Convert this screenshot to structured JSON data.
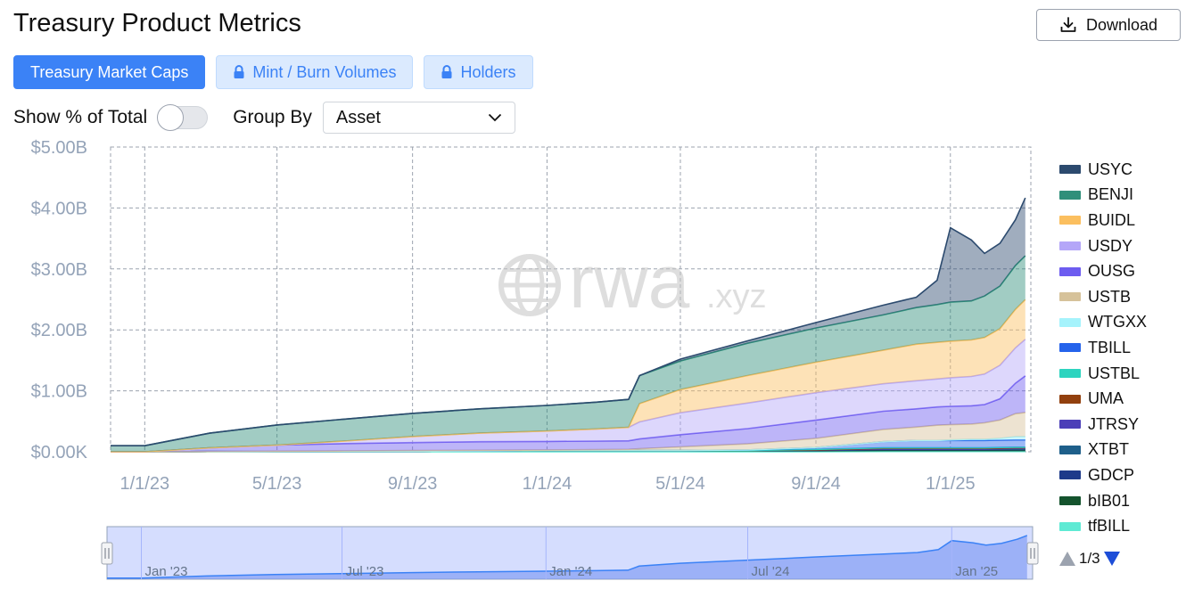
{
  "header": {
    "title": "Treasury Product Metrics",
    "download_label": "Download"
  },
  "tabs": [
    {
      "label": "Treasury Market Caps",
      "active": true
    },
    {
      "label": "Mint / Burn Volumes",
      "locked": true
    },
    {
      "label": "Holders",
      "locked": true
    }
  ],
  "controls": {
    "percent_label": "Show % of Total",
    "percent_on": false,
    "group_label": "Group By",
    "group_value": "Asset"
  },
  "watermark": {
    "main": "rwa",
    "suffix": ".xyz"
  },
  "pager": {
    "text": "1/3"
  },
  "colors": {
    "accent": "#3b82f6",
    "navigator": "#6d8cf0"
  },
  "chart_data": {
    "type": "area",
    "stacked": true,
    "xlim": [
      "2022-12-01",
      "2025-03-15"
    ],
    "ylim": [
      0,
      5
    ],
    "y_unit": "billions USD",
    "x_ticks": [
      "1/1/23",
      "5/1/23",
      "9/1/23",
      "1/1/24",
      "5/1/24",
      "9/1/24",
      "1/1/25"
    ],
    "x_tick_dates": [
      "2023-01-01",
      "2023-05-01",
      "2023-09-01",
      "2024-01-01",
      "2024-05-01",
      "2024-09-01",
      "2025-01-01"
    ],
    "y_ticks": [
      "$0.00K",
      "$1.00B",
      "$2.00B",
      "$3.00B",
      "$4.00B",
      "$5.00B"
    ],
    "y_tick_values": [
      0,
      1,
      2,
      3,
      4,
      5
    ],
    "grid": true,
    "legend_position": "right",
    "x": [
      "2022-12-01",
      "2023-01-01",
      "2023-03-01",
      "2023-05-01",
      "2023-07-01",
      "2023-09-01",
      "2023-11-01",
      "2024-01-01",
      "2024-02-15",
      "2024-03-15",
      "2024-03-25",
      "2024-05-01",
      "2024-07-01",
      "2024-09-01",
      "2024-11-01",
      "2024-12-01",
      "2024-12-20",
      "2025-01-01",
      "2025-01-20",
      "2025-02-01",
      "2025-02-15",
      "2025-03-01",
      "2025-03-10"
    ],
    "series": [
      {
        "name": "tfBILL",
        "color": "#5eead4",
        "values": [
          0,
          0,
          0,
          0,
          0,
          0,
          0,
          0,
          0,
          0,
          0,
          0,
          0,
          0,
          0.005,
          0.005,
          0.005,
          0.005,
          0.005,
          0.005,
          0.005,
          0.005,
          0.005
        ]
      },
      {
        "name": "bIB01",
        "color": "#14532d",
        "values": [
          0,
          0,
          0.005,
          0.01,
          0.01,
          0.01,
          0.015,
          0.02,
          0.02,
          0.02,
          0.02,
          0.02,
          0.02,
          0.02,
          0.02,
          0.02,
          0.02,
          0.02,
          0.02,
          0.02,
          0.02,
          0.02,
          0.02
        ]
      },
      {
        "name": "GDCP",
        "color": "#1e3a8a",
        "values": [
          0,
          0,
          0,
          0,
          0,
          0,
          0,
          0,
          0,
          0,
          0,
          0,
          0,
          0,
          0.01,
          0.01,
          0.01,
          0.01,
          0.01,
          0.01,
          0.01,
          0.01,
          0.01
        ]
      },
      {
        "name": "XTBT",
        "color": "#1e5f8a",
        "values": [
          0,
          0,
          0,
          0,
          0,
          0,
          0,
          0,
          0,
          0,
          0,
          0,
          0,
          0.01,
          0.01,
          0.01,
          0.01,
          0.01,
          0.01,
          0.01,
          0.01,
          0.01,
          0.01
        ]
      },
      {
        "name": "JTRSY",
        "color": "#4c3fb8",
        "values": [
          0,
          0,
          0,
          0,
          0,
          0,
          0,
          0,
          0,
          0,
          0,
          0,
          0,
          0,
          0,
          0,
          0,
          0,
          0,
          0,
          0.005,
          0.01,
          0.01
        ]
      },
      {
        "name": "UMA",
        "color": "#92400e",
        "values": [
          0,
          0,
          0,
          0,
          0,
          0,
          0,
          0,
          0,
          0,
          0,
          0,
          0,
          0,
          0.01,
          0.01,
          0.01,
          0.01,
          0.01,
          0.01,
          0.01,
          0.01,
          0.01
        ]
      },
      {
        "name": "USTBL",
        "color": "#2dd4bf",
        "values": [
          0,
          0,
          0,
          0,
          0,
          0,
          0,
          0,
          0,
          0,
          0,
          0,
          0,
          0.01,
          0.01,
          0.01,
          0.01,
          0.01,
          0.01,
          0.01,
          0.01,
          0.01,
          0.01
        ]
      },
      {
        "name": "TBILL",
        "color": "#2563eb",
        "values": [
          0,
          0,
          0,
          0,
          0,
          0,
          0,
          0,
          0,
          0,
          0,
          0,
          0.01,
          0.03,
          0.1,
          0.12,
          0.12,
          0.12,
          0.12,
          0.12,
          0.12,
          0.12,
          0.12
        ]
      },
      {
        "name": "WTGXX",
        "color": "#a5f3fc",
        "values": [
          0,
          0,
          0,
          0,
          0,
          0,
          0,
          0,
          0,
          0,
          0,
          0,
          0,
          0,
          0,
          0,
          0,
          0.01,
          0.02,
          0.02,
          0.03,
          0.05,
          0.05
        ]
      },
      {
        "name": "USTB",
        "color": "#d6c29a",
        "values": [
          0,
          0,
          0,
          0,
          0.005,
          0.01,
          0.01,
          0.01,
          0.015,
          0.02,
          0.03,
          0.06,
          0.1,
          0.15,
          0.2,
          0.22,
          0.25,
          0.25,
          0.25,
          0.27,
          0.3,
          0.38,
          0.4
        ]
      },
      {
        "name": "OUSG",
        "color": "#6d5cf0",
        "values": [
          0,
          0,
          0.06,
          0.1,
          0.12,
          0.13,
          0.14,
          0.14,
          0.14,
          0.14,
          0.16,
          0.2,
          0.25,
          0.3,
          0.3,
          0.3,
          0.3,
          0.3,
          0.3,
          0.3,
          0.35,
          0.5,
          0.6
        ]
      },
      {
        "name": "USDY",
        "color": "#b4a6f8",
        "values": [
          0,
          0,
          0,
          0,
          0.04,
          0.1,
          0.14,
          0.17,
          0.2,
          0.22,
          0.28,
          0.36,
          0.42,
          0.45,
          0.45,
          0.46,
          0.46,
          0.47,
          0.48,
          0.5,
          0.55,
          0.58,
          0.6
        ]
      },
      {
        "name": "BUIDL",
        "color": "#fbbf5f",
        "values": [
          0,
          0,
          0,
          0,
          0,
          0,
          0,
          0,
          0,
          0,
          0.3,
          0.38,
          0.45,
          0.5,
          0.55,
          0.6,
          0.6,
          0.6,
          0.6,
          0.6,
          0.6,
          0.63,
          0.65
        ]
      },
      {
        "name": "BENJI",
        "color": "#2f8f7a",
        "values": [
          0.1,
          0.1,
          0.24,
          0.33,
          0.36,
          0.38,
          0.4,
          0.42,
          0.44,
          0.46,
          0.46,
          0.47,
          0.53,
          0.56,
          0.58,
          0.6,
          0.62,
          0.64,
          0.64,
          0.68,
          0.7,
          0.72,
          0.72
        ]
      },
      {
        "name": "USYC",
        "color": "#2c4a6e",
        "values": [
          0,
          0,
          0,
          0,
          0,
          0,
          0,
          0,
          0,
          0,
          0,
          0.03,
          0.04,
          0.09,
          0.16,
          0.17,
          0.4,
          1.22,
          1.0,
          0.7,
          0.7,
          0.75,
          0.95
        ]
      }
    ]
  }
}
